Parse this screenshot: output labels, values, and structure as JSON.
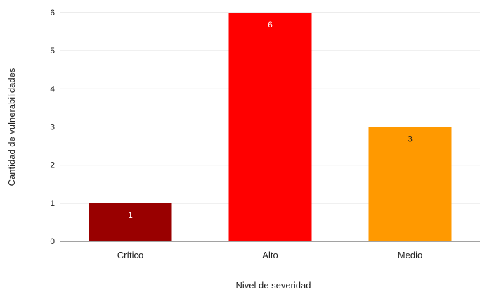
{
  "chart_data": {
    "type": "bar",
    "title": "",
    "xlabel": "Nivel de severidad",
    "ylabel": "Cantidad de vulnerabilidades",
    "categories": [
      "Crítico",
      "Alto",
      "Medio"
    ],
    "values": [
      1,
      6,
      3
    ],
    "data_labels": [
      "1",
      "6",
      "3"
    ],
    "colors": [
      "#990000",
      "#ff0000",
      "#ff9900"
    ],
    "label_colors": [
      "#ffffff",
      "#ffffff",
      "#222222"
    ],
    "ylim": [
      0,
      6
    ],
    "yticks": [
      0,
      1,
      2,
      3,
      4,
      5,
      6
    ],
    "grid": true,
    "legend": "none"
  }
}
